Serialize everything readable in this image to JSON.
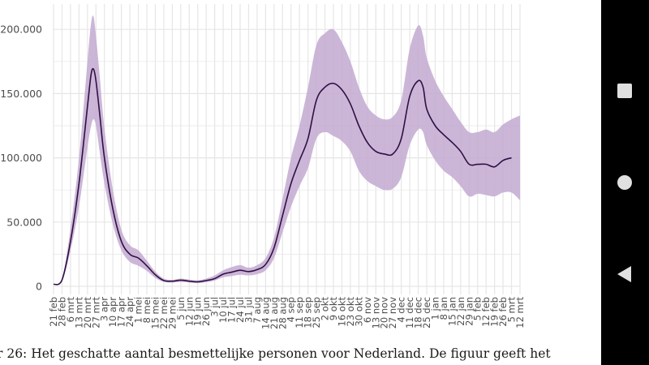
{
  "chart_data": {
    "type": "line",
    "title": "",
    "xlabel": "",
    "ylabel": "",
    "ylim": [
      0,
      220000
    ],
    "y_ticks": [
      0,
      50000,
      100000,
      150000,
      200000
    ],
    "y_tick_labels": [
      "0",
      "50.000",
      "100.000",
      "150.000",
      "200.000"
    ],
    "x_start_day": 0,
    "x_end_day": 385,
    "x_ticks": [
      {
        "day": 0,
        "label": "21 feb"
      },
      {
        "day": 7,
        "label": "28 feb"
      },
      {
        "day": 14,
        "label": "6 mrt"
      },
      {
        "day": 21,
        "label": "13 mrt"
      },
      {
        "day": 28,
        "label": "20 mrt"
      },
      {
        "day": 35,
        "label": "27 mrt"
      },
      {
        "day": 42,
        "label": "3 apr"
      },
      {
        "day": 49,
        "label": "10 apr"
      },
      {
        "day": 56,
        "label": "17 apr"
      },
      {
        "day": 63,
        "label": "24 apr"
      },
      {
        "day": 70,
        "label": "1 mei"
      },
      {
        "day": 77,
        "label": "8 mei"
      },
      {
        "day": 84,
        "label": "15 mei"
      },
      {
        "day": 91,
        "label": "22 mei"
      },
      {
        "day": 98,
        "label": "29 mei"
      },
      {
        "day": 105,
        "label": "5 jun"
      },
      {
        "day": 112,
        "label": "12 jun"
      },
      {
        "day": 119,
        "label": "19 jun"
      },
      {
        "day": 126,
        "label": "26 jun"
      },
      {
        "day": 133,
        "label": "3 jul"
      },
      {
        "day": 140,
        "label": "10 jul"
      },
      {
        "day": 147,
        "label": "17 jul"
      },
      {
        "day": 154,
        "label": "24 jul"
      },
      {
        "day": 161,
        "label": "31 jul"
      },
      {
        "day": 168,
        "label": "7 aug"
      },
      {
        "day": 175,
        "label": "14 aug"
      },
      {
        "day": 182,
        "label": "21 aug"
      },
      {
        "day": 189,
        "label": "28 aug"
      },
      {
        "day": 196,
        "label": "4 sep"
      },
      {
        "day": 203,
        "label": "11 sep"
      },
      {
        "day": 210,
        "label": "18 sep"
      },
      {
        "day": 217,
        "label": "25 sep"
      },
      {
        "day": 224,
        "label": "2 okt"
      },
      {
        "day": 231,
        "label": "9 okt"
      },
      {
        "day": 238,
        "label": "16 okt"
      },
      {
        "day": 245,
        "label": "23 okt"
      },
      {
        "day": 252,
        "label": "30 okt"
      },
      {
        "day": 259,
        "label": "6 nov"
      },
      {
        "day": 266,
        "label": "13 nov"
      },
      {
        "day": 273,
        "label": "20 nov"
      },
      {
        "day": 280,
        "label": "27 nov"
      },
      {
        "day": 287,
        "label": "4 dec"
      },
      {
        "day": 294,
        "label": "11 dec"
      },
      {
        "day": 301,
        "label": "18 dec"
      },
      {
        "day": 308,
        "label": "25 dec"
      },
      {
        "day": 315,
        "label": "1 jan"
      },
      {
        "day": 322,
        "label": "8 jan"
      },
      {
        "day": 329,
        "label": "15 jan"
      },
      {
        "day": 336,
        "label": "22 jan"
      },
      {
        "day": 343,
        "label": "29 jan"
      },
      {
        "day": 350,
        "label": "5 feb"
      },
      {
        "day": 357,
        "label": "12 feb"
      },
      {
        "day": 364,
        "label": "19 feb"
      },
      {
        "day": 371,
        "label": "26 feb"
      },
      {
        "day": 378,
        "label": "5 mrt"
      },
      {
        "day": 385,
        "label": "12 mrt"
      }
    ],
    "series": [
      {
        "name": "Geschat aantal besmettelijke personen",
        "color": "#2f1043",
        "points": [
          [
            0,
            1500
          ],
          [
            7,
            5000
          ],
          [
            14,
            35000
          ],
          [
            21,
            80000
          ],
          [
            28,
            140000
          ],
          [
            31,
            165000
          ],
          [
            33,
            169000
          ],
          [
            35,
            160000
          ],
          [
            38,
            135000
          ],
          [
            42,
            100000
          ],
          [
            49,
            60000
          ],
          [
            56,
            35000
          ],
          [
            63,
            25000
          ],
          [
            70,
            22000
          ],
          [
            77,
            16000
          ],
          [
            84,
            9000
          ],
          [
            91,
            4500
          ],
          [
            98,
            4000
          ],
          [
            105,
            4800
          ],
          [
            112,
            4000
          ],
          [
            119,
            3500
          ],
          [
            126,
            4500
          ],
          [
            133,
            6000
          ],
          [
            140,
            9500
          ],
          [
            147,
            11000
          ],
          [
            154,
            12500
          ],
          [
            161,
            11500
          ],
          [
            168,
            13000
          ],
          [
            175,
            17000
          ],
          [
            182,
            30000
          ],
          [
            189,
            55000
          ],
          [
            196,
            80000
          ],
          [
            203,
            98000
          ],
          [
            210,
            115000
          ],
          [
            217,
            145000
          ],
          [
            224,
            155000
          ],
          [
            231,
            158000
          ],
          [
            238,
            153000
          ],
          [
            245,
            142000
          ],
          [
            252,
            125000
          ],
          [
            259,
            112000
          ],
          [
            266,
            105000
          ],
          [
            273,
            103000
          ],
          [
            280,
            103000
          ],
          [
            287,
            115000
          ],
          [
            294,
            148000
          ],
          [
            301,
            160000
          ],
          [
            305,
            155000
          ],
          [
            308,
            138000
          ],
          [
            315,
            125000
          ],
          [
            322,
            118000
          ],
          [
            329,
            112000
          ],
          [
            336,
            105000
          ],
          [
            343,
            95000
          ],
          [
            350,
            95000
          ],
          [
            357,
            95000
          ],
          [
            364,
            93000
          ],
          [
            371,
            98000
          ],
          [
            378,
            100000
          ]
        ],
        "band_upper": [
          [
            0,
            1800
          ],
          [
            7,
            6000
          ],
          [
            14,
            45000
          ],
          [
            21,
            100000
          ],
          [
            28,
            175000
          ],
          [
            31,
            205000
          ],
          [
            33,
            210000
          ],
          [
            35,
            195000
          ],
          [
            38,
            165000
          ],
          [
            42,
            123000
          ],
          [
            49,
            75000
          ],
          [
            56,
            44000
          ],
          [
            63,
            32000
          ],
          [
            70,
            28000
          ],
          [
            77,
            20000
          ],
          [
            84,
            11500
          ],
          [
            91,
            6000
          ],
          [
            98,
            5000
          ],
          [
            105,
            6000
          ],
          [
            112,
            5200
          ],
          [
            119,
            4600
          ],
          [
            126,
            6000
          ],
          [
            133,
            8500
          ],
          [
            140,
            12500
          ],
          [
            147,
            15000
          ],
          [
            154,
            16500
          ],
          [
            161,
            14500
          ],
          [
            168,
            16500
          ],
          [
            175,
            22000
          ],
          [
            182,
            38000
          ],
          [
            189,
            68000
          ],
          [
            196,
            100000
          ],
          [
            203,
            125000
          ],
          [
            210,
            155000
          ],
          [
            217,
            188000
          ],
          [
            224,
            197000
          ],
          [
            231,
            200000
          ],
          [
            238,
            190000
          ],
          [
            245,
            175000
          ],
          [
            252,
            155000
          ],
          [
            259,
            140000
          ],
          [
            266,
            133000
          ],
          [
            273,
            130000
          ],
          [
            280,
            132000
          ],
          [
            287,
            145000
          ],
          [
            294,
            185000
          ],
          [
            301,
            203000
          ],
          [
            305,
            195000
          ],
          [
            308,
            178000
          ],
          [
            315,
            160000
          ],
          [
            322,
            148000
          ],
          [
            329,
            138000
          ],
          [
            336,
            128000
          ],
          [
            343,
            120000
          ],
          [
            350,
            120000
          ],
          [
            357,
            122000
          ],
          [
            364,
            120000
          ],
          [
            371,
            126000
          ],
          [
            378,
            130000
          ],
          [
            385,
            133000
          ]
        ],
        "band_lower": [
          [
            0,
            1200
          ],
          [
            7,
            4000
          ],
          [
            14,
            28000
          ],
          [
            21,
            62000
          ],
          [
            28,
            108000
          ],
          [
            31,
            125000
          ],
          [
            33,
            130000
          ],
          [
            35,
            125000
          ],
          [
            38,
            105000
          ],
          [
            42,
            80000
          ],
          [
            49,
            48000
          ],
          [
            56,
            28000
          ],
          [
            63,
            19000
          ],
          [
            70,
            16000
          ],
          [
            77,
            12000
          ],
          [
            84,
            6500
          ],
          [
            91,
            3500
          ],
          [
            98,
            3000
          ],
          [
            105,
            3500
          ],
          [
            112,
            3000
          ],
          [
            119,
            2500
          ],
          [
            126,
            3200
          ],
          [
            133,
            4500
          ],
          [
            140,
            7000
          ],
          [
            147,
            8000
          ],
          [
            154,
            9000
          ],
          [
            161,
            8500
          ],
          [
            168,
            9500
          ],
          [
            175,
            12500
          ],
          [
            182,
            22000
          ],
          [
            189,
            42000
          ],
          [
            196,
            62000
          ],
          [
            203,
            78000
          ],
          [
            210,
            92000
          ],
          [
            217,
            115000
          ],
          [
            224,
            120000
          ],
          [
            231,
            117000
          ],
          [
            238,
            113000
          ],
          [
            245,
            105000
          ],
          [
            252,
            90000
          ],
          [
            259,
            82000
          ],
          [
            266,
            78000
          ],
          [
            273,
            75000
          ],
          [
            280,
            76000
          ],
          [
            287,
            85000
          ],
          [
            294,
            110000
          ],
          [
            301,
            122000
          ],
          [
            305,
            120000
          ],
          [
            308,
            110000
          ],
          [
            315,
            98000
          ],
          [
            322,
            90000
          ],
          [
            329,
            85000
          ],
          [
            336,
            78000
          ],
          [
            343,
            70000
          ],
          [
            350,
            72000
          ],
          [
            357,
            71000
          ],
          [
            364,
            70000
          ],
          [
            371,
            73000
          ],
          [
            378,
            73000
          ],
          [
            385,
            67000
          ]
        ]
      }
    ],
    "colors": {
      "band": "#c3a9d1",
      "line": "#2f1043",
      "grid": "#e6e6e6"
    }
  },
  "caption": {
    "text": "r 26: Het geschatte aantal besmettelijke personen voor Nederland. De figuur geeft het"
  },
  "nav": {
    "recents_icon": "square-icon",
    "home_icon": "circle-icon",
    "back_icon": "triangle-back-icon"
  }
}
